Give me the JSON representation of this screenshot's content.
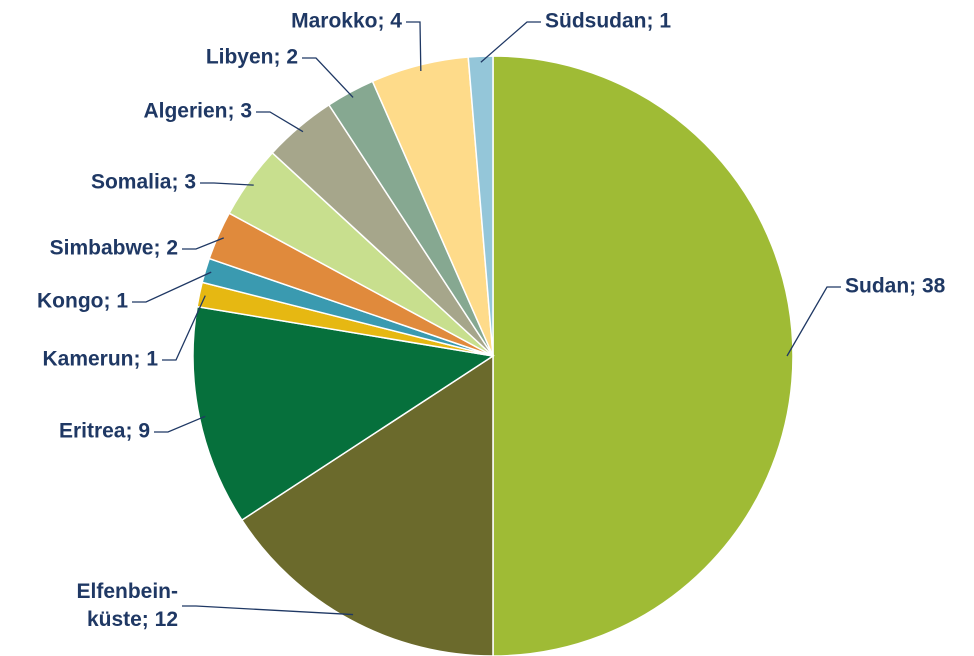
{
  "chart_data": {
    "type": "pie",
    "categories": [
      "Sudan",
      "Elfenbein-küste",
      "Eritrea",
      "Kamerun",
      "Kongo",
      "Simbabwe",
      "Somalia",
      "Algerien",
      "Libyen",
      "Marokko",
      "Südsudan"
    ],
    "values": [
      38,
      12,
      9,
      1,
      1,
      2,
      3,
      3,
      2,
      4,
      1
    ],
    "value_labels": [
      "Sudan; 38",
      "Elfenbein-küste; 12",
      "Eritrea; 9",
      "Kamerun; 1",
      "Kongo; 1",
      "Simbabwe; 2",
      "Somalia; 3",
      "Algerien; 3",
      "Libyen; 2",
      "Marokko; 4",
      "Südsudan; 1"
    ],
    "colors": [
      "#9fbb35",
      "#6b6a2c",
      "#06703c",
      "#e6b812",
      "#3a9ab0",
      "#e08a3c",
      "#c8df8e",
      "#a6a68b",
      "#86a891",
      "#fedb8a",
      "#94c6d9"
    ]
  }
}
